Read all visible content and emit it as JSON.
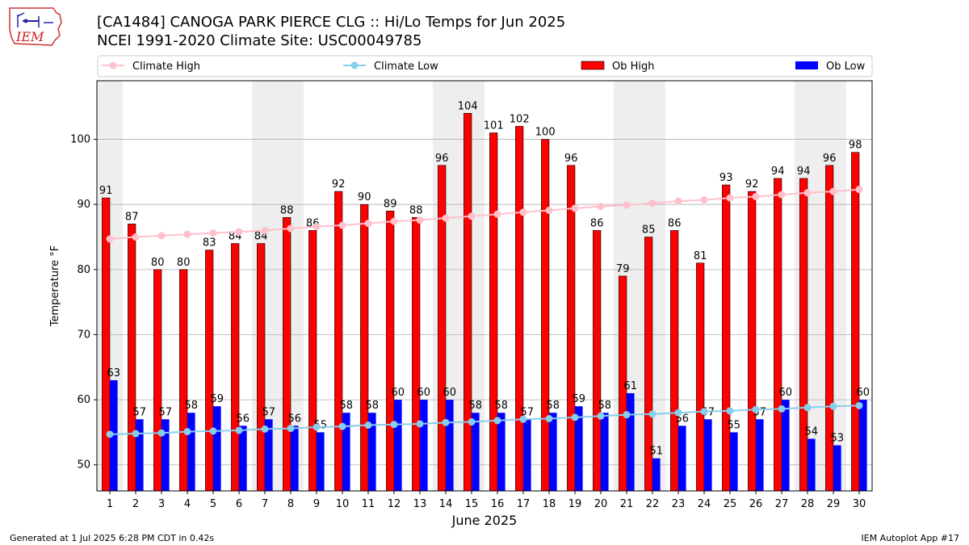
{
  "header": {
    "title_line1": "[CA1484] CANOGA PARK PIERCE CLG :: Hi/Lo Temps for Jun 2025",
    "title_line2": "NCEI 1991-2020 Climate Site: USC00049785",
    "logo_text": "IEM"
  },
  "footer": {
    "left": "Generated at 1 Jul 2025 6:28 PM CDT in 0.42s",
    "right": "IEM Autoplot App #17"
  },
  "colors": {
    "ob_high": "#ff0000",
    "ob_low": "#0000ff",
    "climate_high": "#ffc0cb",
    "climate_low": "#87ceeb",
    "weekend_band": "#eeeeee"
  },
  "chart_data": {
    "type": "bar",
    "xlabel": "June 2025",
    "ylabel": "Temperature °F",
    "ylim": [
      46,
      109
    ],
    "yticks": [
      50,
      60,
      70,
      80,
      90,
      100
    ],
    "grid": true,
    "legend_position": "top",
    "categories": [
      "1",
      "2",
      "3",
      "4",
      "5",
      "6",
      "7",
      "8",
      "9",
      "10",
      "11",
      "12",
      "13",
      "14",
      "15",
      "16",
      "17",
      "18",
      "19",
      "20",
      "21",
      "22",
      "23",
      "24",
      "25",
      "26",
      "27",
      "28",
      "29",
      "30"
    ],
    "shaded_days": [
      1,
      7,
      8,
      14,
      15,
      21,
      22,
      28,
      29
    ],
    "series": [
      {
        "name": "Ob High",
        "kind": "bar",
        "values": [
          91,
          87,
          80,
          80,
          83,
          84,
          84,
          88,
          86,
          92,
          90,
          89,
          88,
          96,
          104,
          101,
          102,
          100,
          96,
          86,
          79,
          85,
          86,
          81,
          93,
          92,
          94,
          94,
          96,
          98
        ]
      },
      {
        "name": "Ob Low",
        "kind": "bar",
        "values": [
          63,
          57,
          57,
          58,
          59,
          56,
          57,
          56,
          55,
          58,
          58,
          60,
          60,
          60,
          58,
          58,
          57,
          58,
          59,
          58,
          61,
          51,
          56,
          57,
          55,
          57,
          60,
          54,
          53,
          60
        ]
      },
      {
        "name": "Climate High",
        "kind": "line",
        "values": [
          84.7,
          85.0,
          85.2,
          85.4,
          85.6,
          85.8,
          86.0,
          86.3,
          86.6,
          86.8,
          87.1,
          87.4,
          87.6,
          87.9,
          88.2,
          88.5,
          88.8,
          89.1,
          89.4,
          89.7,
          89.9,
          90.2,
          90.5,
          90.7,
          91.0,
          91.2,
          91.5,
          91.8,
          92.0,
          92.3
        ]
      },
      {
        "name": "Climate Low",
        "kind": "line",
        "values": [
          54.7,
          54.8,
          54.9,
          55.1,
          55.2,
          55.3,
          55.5,
          55.6,
          55.8,
          55.9,
          56.1,
          56.2,
          56.3,
          56.5,
          56.6,
          56.8,
          57.0,
          57.1,
          57.3,
          57.5,
          57.7,
          57.8,
          58.0,
          58.2,
          58.3,
          58.5,
          58.6,
          58.8,
          59.0,
          59.1
        ]
      }
    ]
  }
}
